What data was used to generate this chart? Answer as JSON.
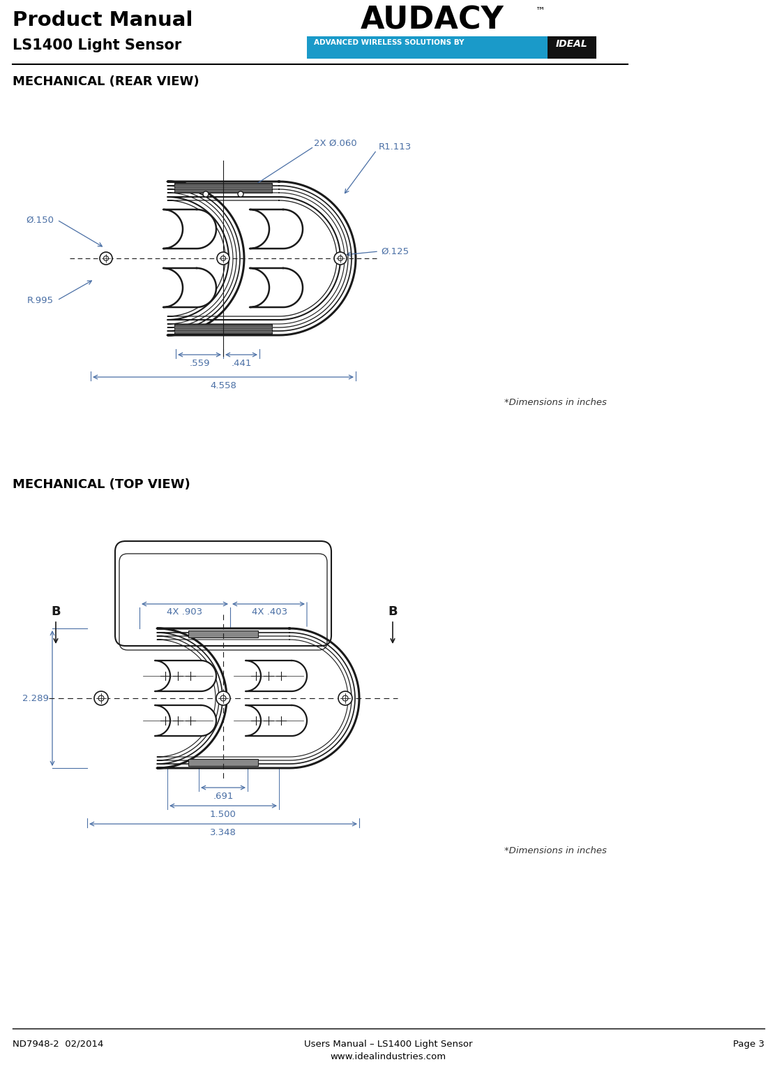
{
  "page_title": "Product Manual",
  "page_subtitle": "LS1400 Light Sensor",
  "section1_title": "MECHANICAL (REAR VIEW)",
  "section2_title": "MECHANICAL (TOP VIEW)",
  "dimensions_note": "*Dimensions in inches",
  "footer_left": "ND7948-2  02/2014",
  "footer_center1": "Users Manual – LS1400 Light Sensor",
  "footer_center2": "www.idealindustries.com",
  "footer_right": "Page 3",
  "audacy_text": "AUDACY",
  "audacy_tm": "™",
  "banner_text": "ADVANCED WIRELESS SOLUTIONS BY",
  "bg_color": "#ffffff",
  "text_color": "#000000",
  "dim_text_color": "#4a6fa5",
  "banner_color": "#1a9ac9",
  "drawing_color": "#1a1a1a",
  "rear_dims": {
    "phi_150": "Ø.150",
    "R995": "R.995",
    "2x_phi_060": "2X Ø.060",
    "R1113": "R1.113",
    "phi_125": "Ø.125",
    "d559": ".559",
    "d441": ".441",
    "d4558": "4.558"
  },
  "top_dims": {
    "4x_903": "4X .903",
    "4x_403": "4X .403",
    "B_left": "B",
    "B_right": "B",
    "d2289": "2.289",
    "d691": ".691",
    "d1500": "1.500",
    "d3348": "3.348"
  }
}
